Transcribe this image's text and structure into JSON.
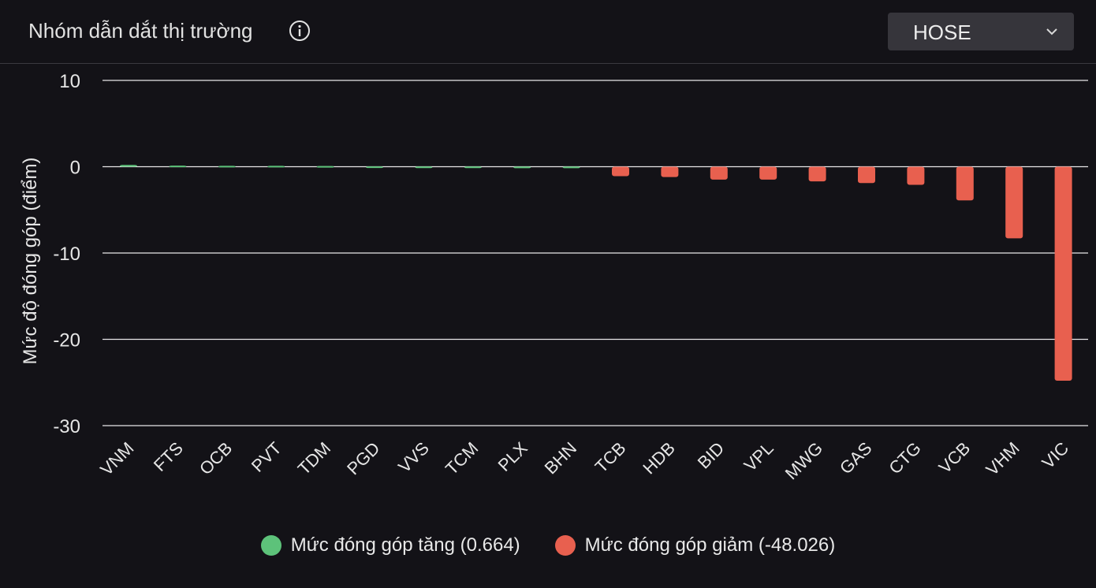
{
  "header": {
    "title": "Nhóm dẫn dắt thị trường",
    "info_icon": "info-icon",
    "exchange_select": {
      "value": "HOSE",
      "icon": "chevron-down-icon"
    }
  },
  "colors": {
    "background": "#131217",
    "increase": "#5dc27a",
    "decrease": "#e8604f",
    "grid": "#ffffff",
    "text": "#e6e6e6"
  },
  "chart_data": {
    "type": "bar",
    "ylabel": "Mức độ đóng góp (điểm)",
    "ylim": [
      -30,
      10
    ],
    "yticks": [
      10,
      0,
      -10,
      -20,
      -30
    ],
    "grid": true,
    "legend_position": "bottom",
    "categories": [
      "VNM",
      "FTS",
      "OCB",
      "PVT",
      "TDM",
      "PGD",
      "VVS",
      "TCM",
      "PLX",
      "BHN",
      "TCB",
      "HDB",
      "BID",
      "VPL",
      "MWG",
      "GAS",
      "CTG",
      "VCB",
      "VHM",
      "VIC"
    ],
    "series": [
      {
        "name": "Mức đóng góp tăng (0.664)",
        "color": "#5dc27a",
        "values": [
          0.2,
          0.12,
          0.1,
          0.1,
          0.08,
          0.03,
          0.02,
          0.02,
          0.01,
          0.01,
          0,
          0,
          0,
          0,
          0,
          0,
          0,
          0,
          0,
          0
        ]
      },
      {
        "name": "Mức đóng góp giảm (-48.026)",
        "color": "#e8604f",
        "values": [
          0,
          0,
          0,
          0,
          0,
          0,
          0,
          0,
          0,
          0,
          -1.1,
          -1.2,
          -1.5,
          -1.5,
          -1.7,
          -1.9,
          -2.1,
          -3.9,
          -8.3,
          -24.8
        ]
      }
    ]
  }
}
